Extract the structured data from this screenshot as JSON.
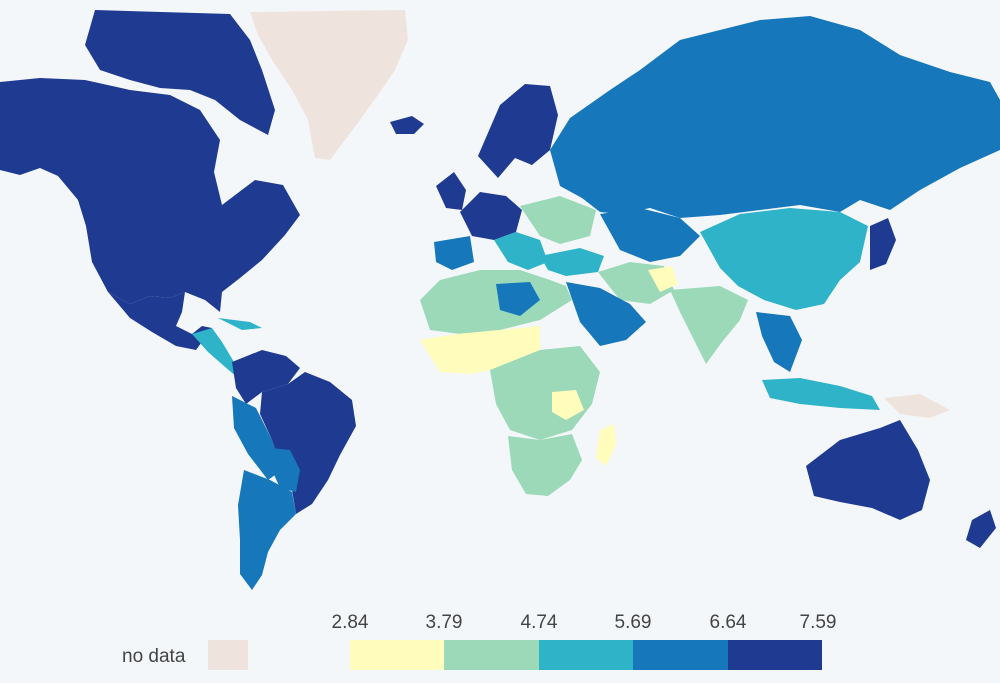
{
  "colors": {
    "background": "#f4f7f9",
    "no_data": "#efe4dd",
    "bin_1": "#fffcbc",
    "bin_2": "#9bd9b8",
    "bin_3": "#2fb3c8",
    "bin_4": "#1677bb",
    "bin_5": "#1f3a91"
  },
  "legend": {
    "no_data_label": "no data",
    "ticks": [
      "2.84",
      "3.79",
      "4.74",
      "5.69",
      "6.64",
      "7.59"
    ]
  }
}
